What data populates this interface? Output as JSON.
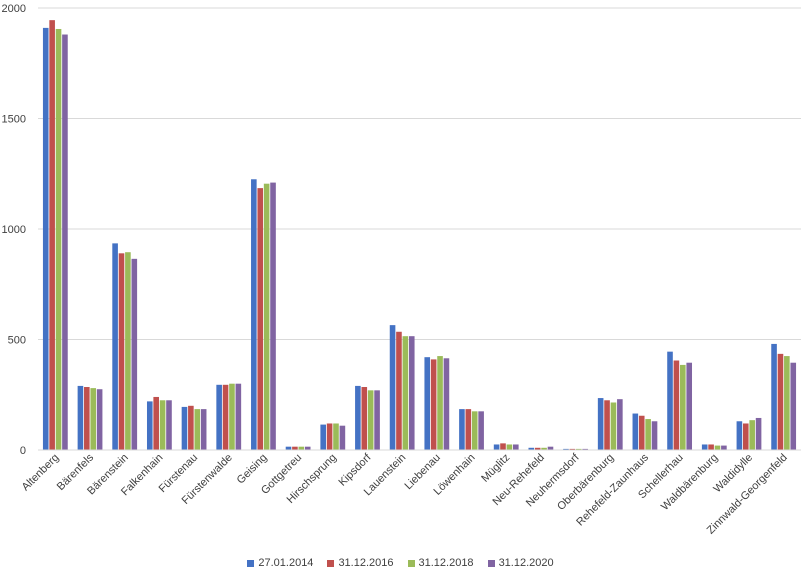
{
  "chart_data": {
    "type": "bar",
    "title": "",
    "xlabel": "",
    "ylabel": "",
    "ylim": [
      0,
      2000
    ],
    "yticks": [
      0,
      500,
      1000,
      1500,
      2000
    ],
    "grid": true,
    "legend_position": "bottom",
    "categories": [
      "Altenberg",
      "Bärenfels",
      "Bärenstein",
      "Falkenhain",
      "Fürstenau",
      "Fürstenwalde",
      "Geising",
      "Gottgetreu",
      "Hirschsprung",
      "Kipsdorf",
      "Lauenstein",
      "Liebenau",
      "Löwenhain",
      "Müglitz",
      "Neu-Rehefeld",
      "Neuhermsdorf",
      "Oberbärenburg",
      "Rehefeld-Zaunhaus",
      "Schellerhau",
      "Waldbärenburg",
      "Waldidylle",
      "Zinnwald-Georgenfeld"
    ],
    "series": [
      {
        "name": "27.01.2014",
        "color": "#4472c4",
        "values": [
          1910,
          290,
          935,
          220,
          195,
          295,
          1225,
          15,
          115,
          290,
          565,
          420,
          185,
          25,
          10,
          5,
          235,
          165,
          445,
          25,
          130,
          480
        ]
      },
      {
        "name": "31.12.2016",
        "color": "#c0504d",
        "values": [
          1945,
          285,
          890,
          240,
          200,
          295,
          1185,
          15,
          120,
          285,
          535,
          410,
          185,
          30,
          10,
          5,
          225,
          155,
          405,
          25,
          120,
          435
        ]
      },
      {
        "name": "31.12.2018",
        "color": "#9bbb59",
        "values": [
          1905,
          280,
          895,
          225,
          185,
          300,
          1205,
          15,
          120,
          270,
          515,
          425,
          175,
          25,
          10,
          5,
          215,
          140,
          385,
          20,
          135,
          425
        ]
      },
      {
        "name": "31.12.2020",
        "color": "#8064a2",
        "values": [
          1880,
          275,
          865,
          225,
          185,
          300,
          1210,
          15,
          110,
          270,
          515,
          415,
          175,
          25,
          15,
          5,
          230,
          130,
          395,
          20,
          145,
          395
        ]
      }
    ]
  }
}
